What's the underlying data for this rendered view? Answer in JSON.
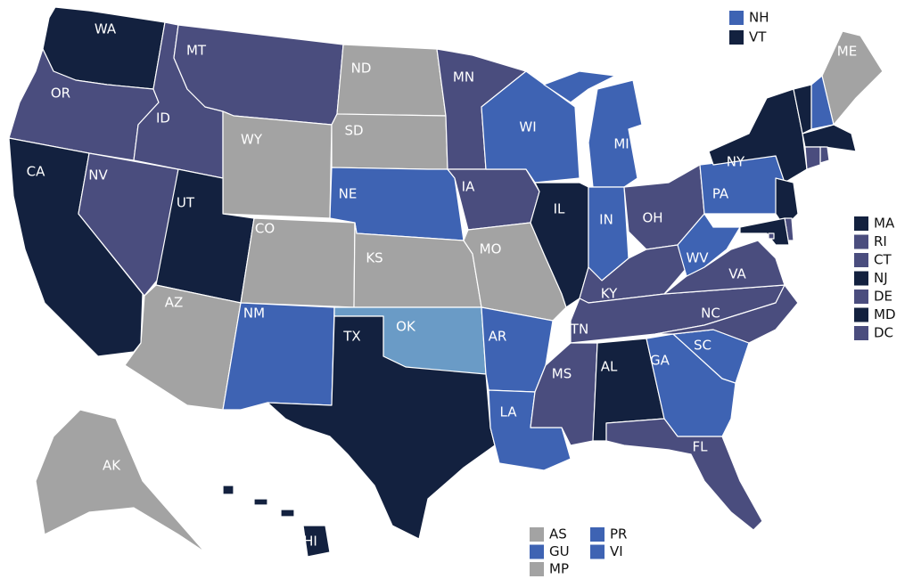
{
  "states": [
    {
      "label": "WA",
      "color": "#13213f"
    },
    {
      "label": "OR",
      "color": "#4a4d7e"
    },
    {
      "label": "CA",
      "color": "#13213f"
    },
    {
      "label": "NV",
      "color": "#4a4d7e"
    },
    {
      "label": "ID",
      "color": "#4a4d7e"
    },
    {
      "label": "MT",
      "color": "#4a4d7e"
    },
    {
      "label": "WY",
      "color": "#a3a3a3"
    },
    {
      "label": "UT",
      "color": "#13213f"
    },
    {
      "label": "AZ",
      "color": "#a3a3a3"
    },
    {
      "label": "CO",
      "color": "#a3a3a3"
    },
    {
      "label": "NM",
      "color": "#3e63b3"
    },
    {
      "label": "ND",
      "color": "#a3a3a3"
    },
    {
      "label": "SD",
      "color": "#a3a3a3"
    },
    {
      "label": "NE",
      "color": "#3e63b3"
    },
    {
      "label": "KS",
      "color": "#a3a3a3"
    },
    {
      "label": "OK",
      "color": "#6a9bc6"
    },
    {
      "label": "TX",
      "color": "#13213f"
    },
    {
      "label": "MN",
      "color": "#4a4d7e"
    },
    {
      "label": "IA",
      "color": "#4a4d7e"
    },
    {
      "label": "MO",
      "color": "#a3a3a3"
    },
    {
      "label": "AR",
      "color": "#3e63b3"
    },
    {
      "label": "LA",
      "color": "#3e63b3"
    },
    {
      "label": "WI",
      "color": "#3e63b3"
    },
    {
      "label": "IL",
      "color": "#13213f"
    },
    {
      "label": "MI",
      "color": "#3e63b3"
    },
    {
      "label": "IN",
      "color": "#3e63b3"
    },
    {
      "label": "OH",
      "color": "#4a4d7e"
    },
    {
      "label": "KY",
      "color": "#4a4d7e"
    },
    {
      "label": "TN",
      "color": "#4a4d7e"
    },
    {
      "label": "MS",
      "color": "#4a4d7e"
    },
    {
      "label": "AL",
      "color": "#13213f"
    },
    {
      "label": "GA",
      "color": "#3e63b3"
    },
    {
      "label": "FL",
      "color": "#4a4d7e"
    },
    {
      "label": "SC",
      "color": "#3e63b3"
    },
    {
      "label": "NC",
      "color": "#4a4d7e"
    },
    {
      "label": "VA",
      "color": "#4a4d7e"
    },
    {
      "label": "WV",
      "color": "#3e63b3"
    },
    {
      "label": "PA",
      "color": "#3e63b3"
    },
    {
      "label": "NY",
      "color": "#13213f"
    },
    {
      "label": "ME",
      "color": "#a3a3a3"
    },
    {
      "label": "AK",
      "color": "#a3a3a3"
    },
    {
      "label": "HI",
      "color": "#13213f"
    }
  ],
  "legend_top": [
    {
      "label": "NH",
      "color": "#3e63b3"
    },
    {
      "label": "VT",
      "color": "#13213f"
    }
  ],
  "legend_right": [
    {
      "label": "MA",
      "color": "#13213f"
    },
    {
      "label": "RI",
      "color": "#4a4d7e"
    },
    {
      "label": "CT",
      "color": "#4a4d7e"
    },
    {
      "label": "NJ",
      "color": "#13213f"
    },
    {
      "label": "DE",
      "color": "#4a4d7e"
    },
    {
      "label": "MD",
      "color": "#13213f"
    },
    {
      "label": "DC",
      "color": "#4a4d7e"
    }
  ],
  "legend_bottom": [
    {
      "label": "AS",
      "color": "#a3a3a3"
    },
    {
      "label": "GU",
      "color": "#3e63b3"
    },
    {
      "label": "MP",
      "color": "#a3a3a3"
    },
    {
      "label": "PR",
      "color": "#3e63b3"
    },
    {
      "label": "VI",
      "color": "#3e63b3"
    }
  ]
}
